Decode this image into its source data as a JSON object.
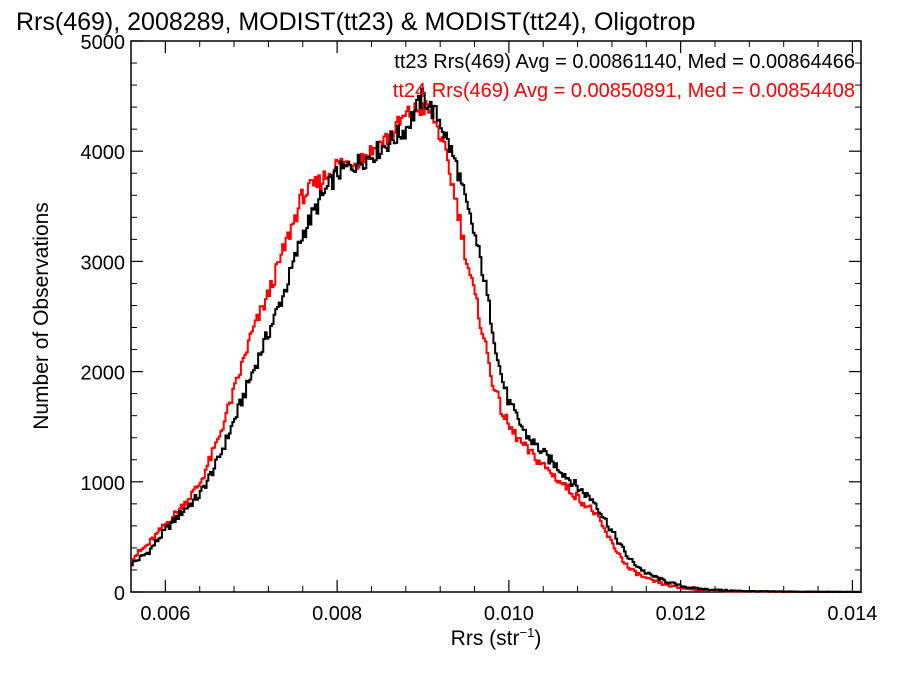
{
  "chart_data": {
    "type": "line",
    "title": "Rrs(469), 2008289, MODIST(tt23) & MODIST(tt24), Oligotrop",
    "xlabel_main": "Rrs (str",
    "xlabel_sup": "−1",
    "xlabel_close": ")",
    "ylabel": "Number of Observations",
    "xlim": [
      0.0056,
      0.0141
    ],
    "ylim": [
      0,
      5000
    ],
    "x_ticks": [
      0.006,
      0.008,
      0.01,
      0.012,
      0.014
    ],
    "x_tick_labels": [
      "0.006",
      "0.008",
      "0.010",
      "0.012",
      "0.014"
    ],
    "y_ticks": [
      0,
      1000,
      2000,
      3000,
      4000,
      5000
    ],
    "y_tick_labels": [
      "0",
      "1000",
      "2000",
      "3000",
      "4000",
      "5000"
    ],
    "grid": false,
    "legend_placement": "top-right",
    "annotations": [
      {
        "text": "tt23 Rrs(469) Avg = 0.00861140, Med = 0.00864466",
        "color": "#000000"
      },
      {
        "text": "tt24 Rrs(469) Avg = 0.00850891, Med = 0.00854408",
        "color": "#ff0000"
      }
    ],
    "series": [
      {
        "color": "#000000",
        "x": [
          0.0056,
          0.0058,
          0.006,
          0.0062,
          0.0064,
          0.0066,
          0.0068,
          0.007,
          0.0072,
          0.0074,
          0.0076,
          0.0078,
          0.008,
          0.0082,
          0.0084,
          0.0086,
          0.0088,
          0.009,
          0.0091,
          0.0092,
          0.0093,
          0.0094,
          0.0095,
          0.0096,
          0.0097,
          0.0098,
          0.0099,
          0.01,
          0.0102,
          0.0104,
          0.0106,
          0.0108,
          0.011,
          0.0112,
          0.0114,
          0.0116,
          0.0118,
          0.012,
          0.0122,
          0.0124,
          0.0126,
          0.0128,
          0.013,
          0.0132,
          0.0134,
          0.0136,
          0.0138,
          0.0141
        ],
        "y": [
          250,
          360,
          560,
          730,
          880,
          1170,
          1550,
          1960,
          2350,
          2750,
          3250,
          3550,
          3800,
          3880,
          3960,
          4080,
          4200,
          4500,
          4380,
          4280,
          4060,
          3850,
          3520,
          3250,
          2900,
          2450,
          2000,
          1720,
          1430,
          1260,
          1110,
          950,
          820,
          550,
          300,
          170,
          105,
          55,
          30,
          20,
          12,
          8,
          5,
          4,
          3,
          2,
          1,
          1
        ]
      },
      {
        "color": "#ff0000",
        "x": [
          0.0056,
          0.0058,
          0.006,
          0.0062,
          0.0064,
          0.0066,
          0.0068,
          0.007,
          0.0072,
          0.0074,
          0.0076,
          0.0078,
          0.008,
          0.0082,
          0.0084,
          0.0086,
          0.0088,
          0.009,
          0.0091,
          0.0092,
          0.0093,
          0.0094,
          0.0095,
          0.0096,
          0.0097,
          0.0098,
          0.0099,
          0.01,
          0.0102,
          0.0104,
          0.0106,
          0.0108,
          0.011,
          0.0112,
          0.0114,
          0.0116,
          0.0118,
          0.012,
          0.0122,
          0.0124,
          0.0126,
          0.0128,
          0.013,
          0.0132,
          0.0134,
          0.0136,
          0.0138,
          0.0141
        ],
        "y": [
          300,
          430,
          610,
          780,
          980,
          1350,
          1820,
          2330,
          2700,
          3150,
          3600,
          3720,
          3880,
          3900,
          4000,
          4130,
          4320,
          4400,
          4350,
          4150,
          3850,
          3500,
          3050,
          2700,
          2350,
          1950,
          1680,
          1500,
          1300,
          1150,
          1000,
          860,
          720,
          440,
          210,
          120,
          70,
          35,
          20,
          13,
          8,
          5,
          4,
          3,
          2,
          2,
          1,
          1
        ]
      }
    ]
  }
}
